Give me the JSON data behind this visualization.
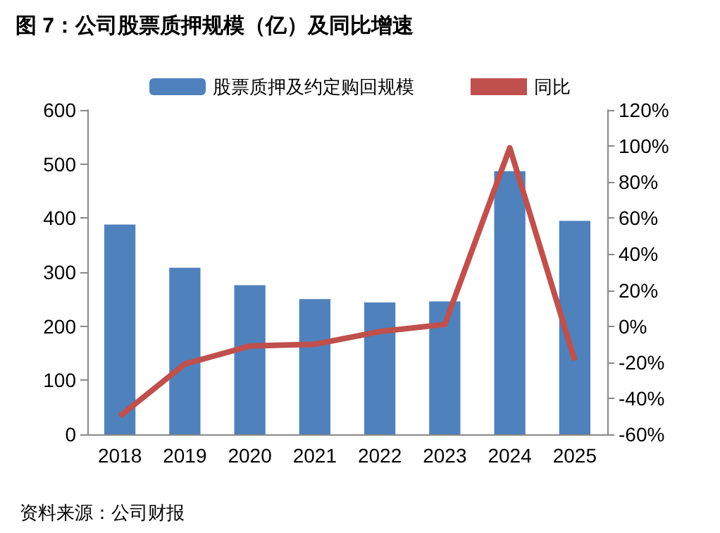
{
  "chart_data": {
    "type": "bar",
    "title": "图 7：公司股票质押规模（亿）及同比增速",
    "categories": [
      "2018",
      "2019",
      "2020",
      "2021",
      "2022",
      "2023",
      "2024",
      "2025"
    ],
    "series": [
      {
        "name": "股票质押及约定购回规模",
        "color": "#4f81bd",
        "values": [
          388,
          308,
          276,
          250,
          244,
          246,
          487,
          395
        ]
      },
      {
        "name": "同比",
        "type": "line",
        "axis": "y2",
        "color": "#c0504d",
        "values": [
          -50,
          -21,
          -11,
          -10,
          -3,
          1,
          99,
          -19
        ]
      }
    ],
    "ylim": [
      0,
      600
    ],
    "yticks": [
      0,
      100,
      200,
      300,
      400,
      500,
      600
    ],
    "y2lim": [
      -60,
      120
    ],
    "y2ticks": [
      {
        "value": -60,
        "label": "-60%"
      },
      {
        "value": -40,
        "label": "-40%"
      },
      {
        "value": -20,
        "label": "-20%"
      },
      {
        "value": 0,
        "label": "0%"
      },
      {
        "value": 20,
        "label": "20%"
      },
      {
        "value": 40,
        "label": "40%"
      },
      {
        "value": 60,
        "label": "60%"
      },
      {
        "value": 80,
        "label": "80%"
      },
      {
        "value": 100,
        "label": "100%"
      },
      {
        "value": 120,
        "label": "120%"
      }
    ],
    "legend": "top",
    "grid": false,
    "marker": "none",
    "annotations": [
      "资料来源：公司财报"
    ]
  }
}
